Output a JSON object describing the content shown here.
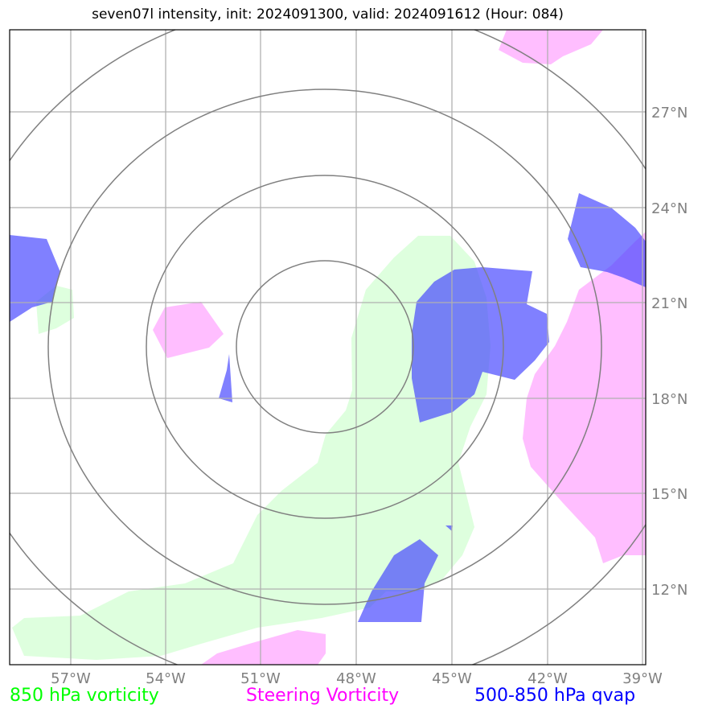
{
  "title": "seven07l intensity, init: 2024091300, valid: 2024091612 (Hour: 084)",
  "longitude_labels": [
    "57°W",
    "54°W",
    "51°W",
    "48°W",
    "45°W",
    "42°W",
    "39°W"
  ],
  "latitude_labels": [
    "27°N",
    "24°N",
    "21°N",
    "18°N",
    "15°N",
    "12°N"
  ],
  "legend": [
    {
      "label": "850 hPa vorticity",
      "color": "#00ff00"
    },
    {
      "label": "Steering Vorticity",
      "color": "#ff00ff"
    },
    {
      "label": "500-850 hPa qvap",
      "color": "#0000ff"
    }
  ],
  "field_colors": {
    "vorticity_850": "#ccffcc",
    "steering_vorticity": "#ffb3ff",
    "qvap": "#6666ff",
    "range_rings": "#808080",
    "gridlines": "#b0b0b0"
  }
}
